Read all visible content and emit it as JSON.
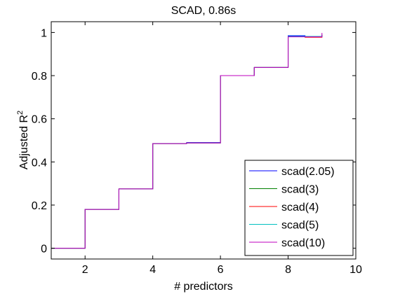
{
  "chart_data": {
    "type": "line",
    "title": "SCAD, 0.86s",
    "xlabel": "# predictors",
    "ylabel_main": "Adjusted R",
    "ylabel_sup": "2",
    "xlim": [
      1,
      10
    ],
    "ylim": [
      -0.05,
      1.05
    ],
    "xticks": [
      2,
      4,
      6,
      8,
      10
    ],
    "yticks": [
      0,
      0.2,
      0.4,
      0.6,
      0.8,
      1
    ],
    "xtick_labels": [
      "2",
      "4",
      "6",
      "8",
      "10"
    ],
    "ytick_labels": [
      "0",
      "0.2",
      "0.4",
      "0.6",
      "0.8",
      "1"
    ],
    "grid": false,
    "legend_position": "bottom-right",
    "series": [
      {
        "name": "scad(2.05)",
        "color": "#0000ff",
        "x": [
          1,
          2,
          3,
          4,
          5,
          5.5,
          6,
          7,
          8,
          8.5,
          9
        ],
        "y": [
          0,
          0.18,
          0.275,
          0.485,
          0.49,
          0.49,
          0.8,
          0.838,
          0.985,
          0.98,
          0.99
        ]
      },
      {
        "name": "scad(3)",
        "color": "#008000",
        "x": [
          1,
          2,
          3,
          4,
          5,
          6,
          7,
          8,
          9
        ],
        "y": [
          0,
          0.18,
          0.275,
          0.485,
          0.488,
          0.8,
          0.838,
          0.982,
          0.99
        ]
      },
      {
        "name": "scad(4)",
        "color": "#ff0000",
        "x": [
          1,
          2,
          3,
          4,
          5,
          6,
          7,
          8,
          8.5,
          9
        ],
        "y": [
          0,
          0.18,
          0.275,
          0.485,
          0.488,
          0.8,
          0.838,
          0.982,
          0.978,
          0.99
        ]
      },
      {
        "name": "scad(5)",
        "color": "#00bfbf",
        "x": [
          1,
          2,
          3,
          4,
          5,
          6,
          7,
          8,
          9
        ],
        "y": [
          0,
          0.18,
          0.275,
          0.485,
          0.488,
          0.8,
          0.838,
          0.982,
          0.99
        ]
      },
      {
        "name": "scad(10)",
        "color": "#bf00bf",
        "x": [
          1,
          2,
          3,
          4,
          5,
          6,
          7,
          8,
          9
        ],
        "y": [
          0,
          0.18,
          0.275,
          0.485,
          0.488,
          0.8,
          0.838,
          0.98,
          0.998
        ]
      }
    ]
  }
}
